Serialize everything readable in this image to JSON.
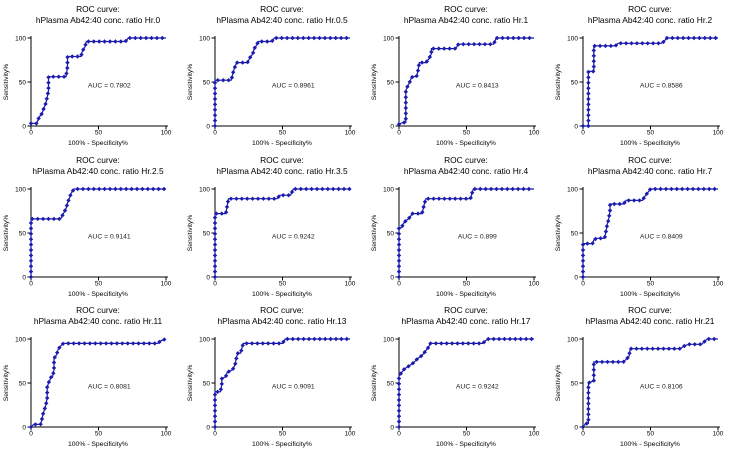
{
  "page": {
    "background": "#ffffff"
  },
  "chart_defaults": {
    "type": "line",
    "xlabel": "100% - Specificity%",
    "ylabel": "Sensitivity%",
    "xticks": [
      0,
      50,
      100
    ],
    "yticks": [
      0,
      50,
      100
    ],
    "xlim": [
      0,
      100
    ],
    "ylim": [
      0,
      100
    ],
    "line_color": "#1c1cae",
    "marker": "diamond",
    "axis_color": "#000000",
    "grid": "off",
    "legend": "none"
  },
  "chart_data": [
    {
      "type": "line",
      "title_line1": "ROC curve:",
      "title_line2": "hPlasma Ab42:40 conc. ratio Hr.0",
      "auc_label": "AUC = 0.7802",
      "xlabel": "100% - Specificity%",
      "ylabel": "Sensitivity%",
      "points": [
        [
          0,
          3
        ],
        [
          4,
          3
        ],
        [
          5,
          6
        ],
        [
          6,
          10
        ],
        [
          8,
          14
        ],
        [
          9,
          18
        ],
        [
          10,
          22
        ],
        [
          11,
          26
        ],
        [
          12,
          33
        ],
        [
          13,
          40
        ],
        [
          13,
          56
        ],
        [
          26,
          56
        ],
        [
          27,
          68
        ],
        [
          27,
          79
        ],
        [
          37,
          79
        ],
        [
          38,
          85
        ],
        [
          40,
          90
        ],
        [
          41,
          96
        ],
        [
          70,
          96
        ],
        [
          72,
          100
        ],
        [
          100,
          100
        ]
      ]
    },
    {
      "type": "line",
      "title_line1": "ROC curve:",
      "title_line2": "hPlasma Ab42:40 conc. ratio Hr.0.5",
      "auc_label": "AUC = 0.8961",
      "xlabel": "100% - Specificity%",
      "ylabel": "Sensitivity%",
      "points": [
        [
          0,
          0
        ],
        [
          0,
          52
        ],
        [
          12,
          52
        ],
        [
          13,
          58
        ],
        [
          14,
          64
        ],
        [
          15,
          68
        ],
        [
          16,
          72
        ],
        [
          24,
          72
        ],
        [
          26,
          78
        ],
        [
          28,
          82
        ],
        [
          29,
          88
        ],
        [
          31,
          92
        ],
        [
          32,
          96
        ],
        [
          42,
          96
        ],
        [
          44,
          100
        ],
        [
          100,
          100
        ]
      ]
    },
    {
      "type": "line",
      "title_line1": "ROC curve:",
      "title_line2": "hPlasma Ab42:40 conc. ratio Hr.1",
      "auc_label": "AUC = 0.8413",
      "xlabel": "100% - Specificity%",
      "ylabel": "Sensitivity%",
      "points": [
        [
          0,
          2
        ],
        [
          3,
          4
        ],
        [
          5,
          4
        ],
        [
          5,
          40
        ],
        [
          6,
          44
        ],
        [
          8,
          50
        ],
        [
          9,
          54
        ],
        [
          10,
          56
        ],
        [
          13,
          56
        ],
        [
          14,
          62
        ],
        [
          15,
          72
        ],
        [
          20,
          72
        ],
        [
          22,
          76
        ],
        [
          24,
          82
        ],
        [
          24,
          88
        ],
        [
          42,
          88
        ],
        [
          44,
          93
        ],
        [
          70,
          93
        ],
        [
          71,
          96
        ],
        [
          72,
          100
        ],
        [
          100,
          100
        ]
      ]
    },
    {
      "type": "line",
      "title_line1": "ROC curve:",
      "title_line2": "hPlasma Ab42:40 conc. ratio Hr.2",
      "auc_label": "AUC = 0.8586",
      "xlabel": "100% - Specificity%",
      "ylabel": "Sensitivity%",
      "points": [
        [
          0,
          0
        ],
        [
          4,
          0
        ],
        [
          4,
          62
        ],
        [
          8,
          62
        ],
        [
          8,
          91
        ],
        [
          24,
          91
        ],
        [
          26,
          94
        ],
        [
          58,
          94
        ],
        [
          60,
          96
        ],
        [
          62,
          100
        ],
        [
          100,
          100
        ]
      ]
    },
    {
      "type": "line",
      "title_line1": "ROC curve:",
      "title_line2": "hPlasma Ab42:40 conc. ratio Hr.2.5",
      "auc_label": "AUC = 0.9141",
      "xlabel": "100% - Specificity%",
      "ylabel": "Sensitivity%",
      "points": [
        [
          0,
          0
        ],
        [
          0,
          66
        ],
        [
          22,
          66
        ],
        [
          24,
          72
        ],
        [
          26,
          78
        ],
        [
          27,
          84
        ],
        [
          28,
          88
        ],
        [
          29,
          92
        ],
        [
          30,
          96
        ],
        [
          32,
          100
        ],
        [
          100,
          100
        ]
      ]
    },
    {
      "type": "line",
      "title_line1": "ROC curve:",
      "title_line2": "hPlasma Ab42:40 conc. ratio Hr.3.5",
      "auc_label": "AUC = 0.9242",
      "xlabel": "100% - Specificity%",
      "ylabel": "Sensitivity%",
      "points": [
        [
          0,
          0
        ],
        [
          0,
          72
        ],
        [
          8,
          72
        ],
        [
          9,
          80
        ],
        [
          10,
          89
        ],
        [
          46,
          89
        ],
        [
          48,
          93
        ],
        [
          56,
          93
        ],
        [
          58,
          100
        ],
        [
          100,
          100
        ]
      ]
    },
    {
      "type": "line",
      "title_line1": "ROC curve:",
      "title_line2": "hPlasma Ab42:40 conc. ratio Hr.4",
      "auc_label": "AUC = 0.899",
      "xlabel": "100% - Specificity%",
      "ylabel": "Sensitivity%",
      "points": [
        [
          0,
          0
        ],
        [
          0,
          56
        ],
        [
          2,
          56
        ],
        [
          3,
          60
        ],
        [
          5,
          64
        ],
        [
          7,
          66
        ],
        [
          8,
          68
        ],
        [
          10,
          72
        ],
        [
          17,
          72
        ],
        [
          18,
          78
        ],
        [
          19,
          84
        ],
        [
          20,
          89
        ],
        [
          53,
          89
        ],
        [
          55,
          100
        ],
        [
          100,
          100
        ]
      ]
    },
    {
      "type": "line",
      "title_line1": "ROC curve:",
      "title_line2": "hPlasma Ab42:40 conc. ratio Hr.7",
      "auc_label": "AUC = 0.8409",
      "xlabel": "100% - Specificity%",
      "ylabel": "Sensitivity%",
      "points": [
        [
          0,
          0
        ],
        [
          0,
          38
        ],
        [
          7,
          38
        ],
        [
          8,
          42
        ],
        [
          10,
          44
        ],
        [
          16,
          44
        ],
        [
          17,
          52
        ],
        [
          18,
          60
        ],
        [
          19,
          65
        ],
        [
          20,
          75
        ],
        [
          20,
          83
        ],
        [
          30,
          83
        ],
        [
          32,
          87
        ],
        [
          44,
          87
        ],
        [
          46,
          92
        ],
        [
          48,
          96
        ],
        [
          50,
          100
        ],
        [
          100,
          100
        ]
      ]
    },
    {
      "type": "line",
      "title_line1": "ROC curve:",
      "title_line2": "hPlasma Ab42:40 conc. ratio Hr.11",
      "auc_label": "AUC = 0.8081",
      "xlabel": "100% - Specificity%",
      "ylabel": "Sensitivity%",
      "points": [
        [
          0,
          0
        ],
        [
          2,
          3
        ],
        [
          7,
          3
        ],
        [
          8,
          8
        ],
        [
          9,
          15
        ],
        [
          10,
          20
        ],
        [
          11,
          25
        ],
        [
          12,
          33
        ],
        [
          12,
          45
        ],
        [
          13,
          50
        ],
        [
          15,
          57
        ],
        [
          16,
          57
        ],
        [
          17,
          65
        ],
        [
          17,
          78
        ],
        [
          19,
          82
        ],
        [
          20,
          88
        ],
        [
          22,
          92
        ],
        [
          24,
          95
        ],
        [
          94,
          95
        ],
        [
          96,
          98
        ],
        [
          100,
          100
        ]
      ]
    },
    {
      "type": "line",
      "title_line1": "ROC curve:",
      "title_line2": "hPlasma Ab42:40 conc. ratio Hr.13",
      "auc_label": "AUC = 0.9091",
      "xlabel": "100% - Specificity%",
      "ylabel": "Sensitivity%",
      "points": [
        [
          0,
          0
        ],
        [
          0,
          40
        ],
        [
          4,
          40
        ],
        [
          5,
          48
        ],
        [
          5,
          55
        ],
        [
          8,
          57
        ],
        [
          9,
          62
        ],
        [
          13,
          65
        ],
        [
          14,
          68
        ],
        [
          15,
          72
        ],
        [
          16,
          80
        ],
        [
          17,
          84
        ],
        [
          19,
          84
        ],
        [
          20,
          90
        ],
        [
          21,
          95
        ],
        [
          50,
          95
        ],
        [
          52,
          100
        ],
        [
          100,
          100
        ]
      ]
    },
    {
      "type": "line",
      "title_line1": "ROC curve:",
      "title_line2": "hPlasma Ab42:40 conc. ratio Hr.17",
      "auc_label": "AUC = 0.9242",
      "xlabel": "100% - Specificity%",
      "ylabel": "Sensitivity%",
      "points": [
        [
          0,
          0
        ],
        [
          0,
          58
        ],
        [
          2,
          62
        ],
        [
          4,
          66
        ],
        [
          6,
          68
        ],
        [
          8,
          70
        ],
        [
          10,
          72
        ],
        [
          12,
          75
        ],
        [
          14,
          78
        ],
        [
          16,
          80
        ],
        [
          18,
          83
        ],
        [
          20,
          87
        ],
        [
          22,
          91
        ],
        [
          23,
          95
        ],
        [
          62,
          95
        ],
        [
          64,
          98
        ],
        [
          66,
          100
        ],
        [
          100,
          100
        ]
      ]
    },
    {
      "type": "line",
      "title_line1": "ROC curve:",
      "title_line2": "hPlasma Ab42:40 conc. ratio Hr.21",
      "auc_label": "AUC = 0.8106",
      "xlabel": "100% - Specificity%",
      "ylabel": "Sensitivity%",
      "points": [
        [
          0,
          0
        ],
        [
          2,
          4
        ],
        [
          4,
          4
        ],
        [
          4,
          50
        ],
        [
          7,
          52
        ],
        [
          8,
          52
        ],
        [
          8,
          74
        ],
        [
          30,
          74
        ],
        [
          32,
          77
        ],
        [
          34,
          80
        ],
        [
          35,
          89
        ],
        [
          72,
          89
        ],
        [
          75,
          92
        ],
        [
          78,
          94
        ],
        [
          88,
          94
        ],
        [
          90,
          97
        ],
        [
          92,
          100
        ],
        [
          100,
          100
        ]
      ]
    }
  ]
}
